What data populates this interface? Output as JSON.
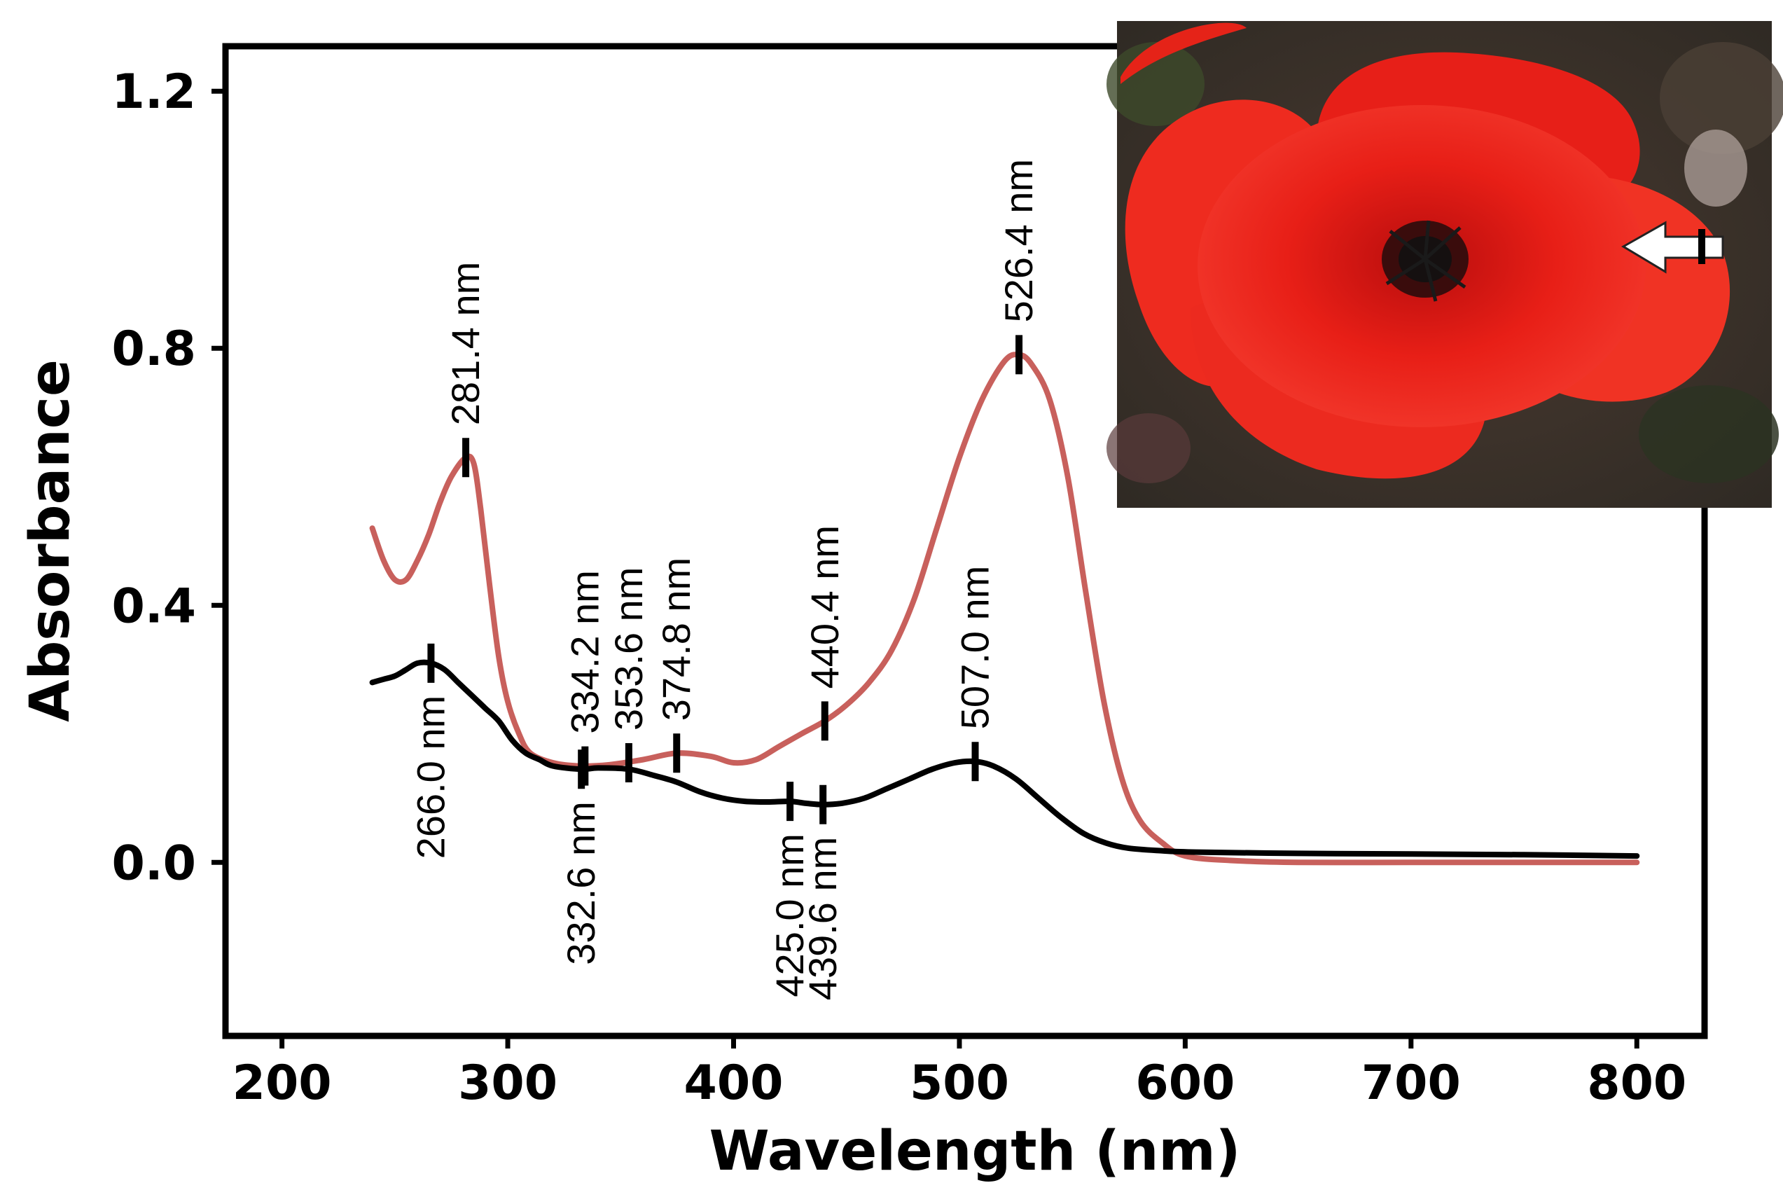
{
  "chart_data": {
    "type": "line",
    "title": "",
    "xlabel": "Wavelength (nm)",
    "ylabel": "Absorbance",
    "xlim": [
      175,
      830
    ],
    "ylim": [
      -0.27,
      1.27
    ],
    "xticks": [
      "200",
      "300",
      "400",
      "500",
      "600",
      "700",
      "800"
    ],
    "yticks": [
      "0.0",
      "0.4",
      "0.8",
      "1.2"
    ],
    "series": [
      {
        "name": "red",
        "color": "#c8605c",
        "x": [
          240,
          245,
          250,
          255,
          260,
          265,
          270,
          275,
          281.4,
          285,
          288,
          292,
          296,
          300,
          305,
          310,
          320,
          332,
          345,
          360,
          375,
          390,
          400,
          410,
          420,
          430,
          440.4,
          450,
          460,
          470,
          480,
          490,
          500,
          510,
          520,
          526.4,
          532,
          540,
          548,
          556,
          564,
          572,
          580,
          590,
          600,
          620,
          650,
          700,
          750,
          800
        ],
        "y": [
          0.52,
          0.47,
          0.44,
          0.44,
          0.47,
          0.51,
          0.56,
          0.6,
          0.63,
          0.62,
          0.55,
          0.43,
          0.32,
          0.25,
          0.2,
          0.17,
          0.155,
          0.15,
          0.152,
          0.16,
          0.17,
          0.165,
          0.155,
          0.16,
          0.18,
          0.2,
          0.22,
          0.245,
          0.28,
          0.33,
          0.41,
          0.52,
          0.63,
          0.72,
          0.78,
          0.79,
          0.775,
          0.72,
          0.6,
          0.42,
          0.25,
          0.13,
          0.065,
          0.03,
          0.01,
          0.003,
          0.0,
          0.0,
          0.0,
          0.0
        ]
      },
      {
        "name": "black",
        "color": "#000000",
        "x": [
          240,
          245,
          250,
          255,
          260,
          266,
          272,
          278,
          284,
          290,
          296,
          302,
          308,
          314,
          320,
          332.6,
          340,
          353.6,
          365,
          374.8,
          385,
          395,
          405,
          415,
          425,
          432,
          439.6,
          448,
          458,
          468,
          478,
          488,
          498,
          507,
          515,
          525,
          535,
          545,
          555,
          565,
          575,
          590,
          605,
          650,
          700,
          750,
          800
        ],
        "y": [
          0.28,
          0.285,
          0.29,
          0.3,
          0.31,
          0.31,
          0.3,
          0.28,
          0.26,
          0.24,
          0.22,
          0.19,
          0.17,
          0.16,
          0.15,
          0.145,
          0.147,
          0.145,
          0.135,
          0.125,
          0.11,
          0.1,
          0.095,
          0.094,
          0.095,
          0.092,
          0.09,
          0.092,
          0.1,
          0.115,
          0.13,
          0.145,
          0.155,
          0.157,
          0.15,
          0.13,
          0.1,
          0.07,
          0.045,
          0.03,
          0.022,
          0.018,
          0.016,
          0.014,
          0.013,
          0.012,
          0.01
        ]
      }
    ],
    "peaks": [
      {
        "label": "281.4 nm",
        "x": 281.4,
        "y": 0.63,
        "series": "red",
        "placement": "above"
      },
      {
        "label": "334.2 nm",
        "x": 334.2,
        "y": 0.15,
        "series": "red",
        "placement": "above"
      },
      {
        "label": "353.6 nm",
        "x": 353.6,
        "y": 0.155,
        "series": "red",
        "placement": "above"
      },
      {
        "label": "374.8 nm",
        "x": 374.8,
        "y": 0.17,
        "series": "red",
        "placement": "above"
      },
      {
        "label": "440.4 nm",
        "x": 440.4,
        "y": 0.22,
        "series": "red",
        "placement": "above"
      },
      {
        "label": "507.0 nm",
        "x": 507.0,
        "y": 0.157,
        "series": "black",
        "placement": "above"
      },
      {
        "label": "526.4 nm",
        "x": 526.4,
        "y": 0.79,
        "series": "red",
        "placement": "above"
      },
      {
        "label": "266.0 nm",
        "x": 266.0,
        "y": 0.31,
        "series": "black",
        "placement": "below"
      },
      {
        "label": "332.6 nm",
        "x": 332.6,
        "y": 0.145,
        "series": "black",
        "placement": "below"
      },
      {
        "label": "425.0 nm",
        "x": 425.0,
        "y": 0.095,
        "series": "black",
        "placement": "below"
      },
      {
        "label": "439.6 nm",
        "x": 439.6,
        "y": 0.09,
        "series": "black",
        "placement": "below"
      }
    ],
    "inset": {
      "subject": "red-poppy-flower-photo",
      "arrow": "white-left-arrow"
    }
  }
}
